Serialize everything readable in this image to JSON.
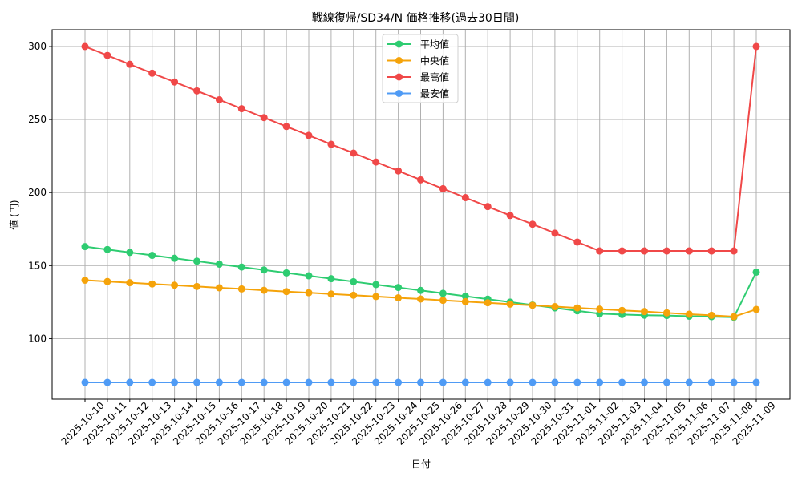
{
  "chart_data": {
    "type": "line",
    "title": "戦線復帰/SD34/N 価格推移(過去30日間)",
    "xlabel": "日付",
    "ylabel": "値 (円)",
    "ylim": [
      58.5,
      311.5
    ],
    "yticks": [
      100,
      150,
      200,
      250,
      300
    ],
    "grid": true,
    "legend_position": "upper center",
    "x": [
      "2025-10-10",
      "2025-10-11",
      "2025-10-12",
      "2025-10-13",
      "2025-10-14",
      "2025-10-15",
      "2025-10-16",
      "2025-10-17",
      "2025-10-18",
      "2025-10-19",
      "2025-10-20",
      "2025-10-21",
      "2025-10-22",
      "2025-10-23",
      "2025-10-24",
      "2025-10-25",
      "2025-10-26",
      "2025-10-27",
      "2025-10-28",
      "2025-10-29",
      "2025-10-30",
      "2025-10-31",
      "2025-11-01",
      "2025-11-02",
      "2025-11-03",
      "2025-11-04",
      "2025-11-05",
      "2025-11-06",
      "2025-11-07",
      "2025-11-08",
      "2025-11-09"
    ],
    "series": [
      {
        "name": "平均値",
        "color": "#2ecc71",
        "values": [
          163,
          161,
          159,
          157,
          155,
          153,
          151,
          149,
          147,
          145,
          143,
          141,
          139,
          137,
          135,
          133,
          131,
          129,
          127,
          125,
          123,
          121,
          119,
          117,
          116.5,
          116,
          115.8,
          115.3,
          115,
          114.6,
          145.5
        ]
      },
      {
        "name": "中央値",
        "color": "#f5a30a",
        "values": [
          140,
          139.1,
          138.3,
          137.4,
          136.6,
          135.7,
          134.8,
          134,
          133.1,
          132.2,
          131.4,
          130.5,
          129.7,
          128.8,
          127.9,
          127.1,
          126.2,
          125.3,
          124.5,
          123.6,
          122.8,
          121.9,
          121,
          120.2,
          119.3,
          118.5,
          117.6,
          116.7,
          115.9,
          115,
          120
        ]
      },
      {
        "name": "最高値",
        "color": "#f04848",
        "values": [
          300,
          293.9,
          287.8,
          281.7,
          275.7,
          269.6,
          263.5,
          257.4,
          251.3,
          245.2,
          239.1,
          233,
          227,
          220.9,
          214.8,
          208.7,
          202.6,
          196.5,
          190.4,
          184.3,
          178.3,
          172.2,
          166.1,
          160,
          160,
          160,
          160,
          160,
          160,
          160,
          300
        ]
      },
      {
        "name": "最安値",
        "color": "#4f9bf5",
        "values": [
          70,
          70,
          70,
          70,
          70,
          70,
          70,
          70,
          70,
          70,
          70,
          70,
          70,
          70,
          70,
          70,
          70,
          70,
          70,
          70,
          70,
          70,
          70,
          70,
          70,
          70,
          70,
          70,
          70,
          70,
          70
        ]
      }
    ]
  }
}
